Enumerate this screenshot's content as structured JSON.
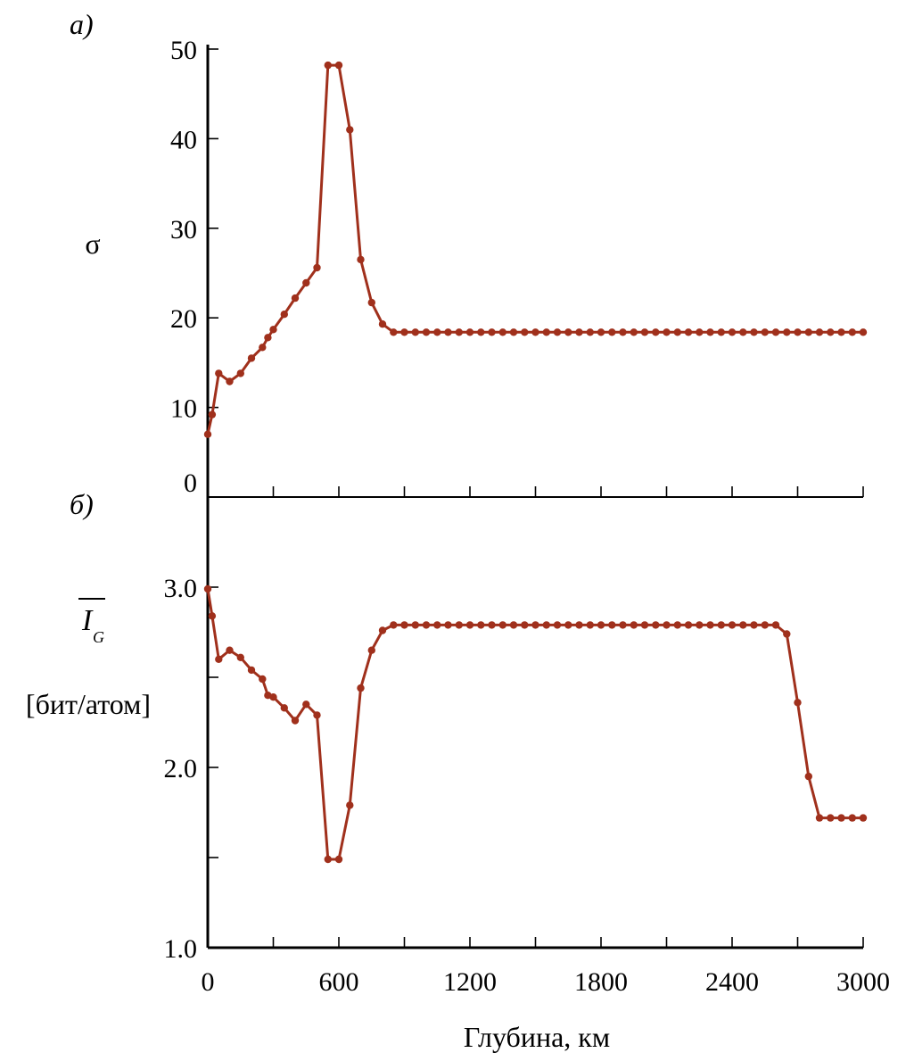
{
  "chart_data": [
    {
      "type": "line",
      "panel_label": "а)",
      "ylabel": "σ",
      "ylim": [
        0,
        50
      ],
      "yticks": [
        0,
        10,
        20,
        30,
        40,
        50
      ],
      "ytick_labels": [
        "0",
        "10",
        "20",
        "30",
        "40",
        "50"
      ],
      "xlim": [
        0,
        3000
      ],
      "color": "#a0301c",
      "series": [
        {
          "x": [
            0,
            20,
            50,
            100,
            150,
            200,
            250,
            275,
            300,
            350,
            400,
            450,
            500,
            550,
            600,
            650,
            700,
            750,
            800,
            850,
            900,
            950,
            1000,
            1050,
            1100,
            1150,
            1200,
            1250,
            1300,
            1350,
            1400,
            1450,
            1500,
            1550,
            1600,
            1650,
            1700,
            1750,
            1800,
            1850,
            1900,
            1950,
            2000,
            2050,
            2100,
            2150,
            2200,
            2250,
            2300,
            2350,
            2400,
            2450,
            2500,
            2550,
            2600,
            2650,
            2700,
            2750,
            2800,
            2850,
            2900,
            2950,
            3000
          ],
          "y": [
            7,
            9.2,
            13.8,
            12.9,
            13.8,
            15.5,
            16.7,
            17.8,
            18.7,
            20.4,
            22.2,
            23.9,
            25.6,
            48.2,
            48.2,
            41.0,
            26.5,
            21.7,
            19.3,
            18.4,
            18.4,
            18.4,
            18.4,
            18.4,
            18.4,
            18.4,
            18.4,
            18.4,
            18.4,
            18.4,
            18.4,
            18.4,
            18.4,
            18.4,
            18.4,
            18.4,
            18.4,
            18.4,
            18.4,
            18.4,
            18.4,
            18.4,
            18.4,
            18.4,
            18.4,
            18.4,
            18.4,
            18.4,
            18.4,
            18.4,
            18.4,
            18.4,
            18.4,
            18.4,
            18.4,
            18.4,
            18.4,
            18.4,
            18.4,
            18.4,
            18.4,
            18.4,
            18.4
          ]
        }
      ]
    },
    {
      "type": "line",
      "panel_label": "б)",
      "ylabel_main": "I",
      "ylabel_sub": "G",
      "ylabel_unit": "[бит/атом]",
      "ylim": [
        1.0,
        3.5
      ],
      "yticks": [
        1.0,
        1.5,
        2.0,
        2.5,
        3.0
      ],
      "ytick_labels": [
        "1.0",
        "",
        "2.0",
        "",
        "3.0"
      ],
      "xlim": [
        0,
        3000
      ],
      "xticks": [
        0,
        300,
        600,
        900,
        1200,
        1500,
        1800,
        2100,
        2400,
        2700,
        3000
      ],
      "xtick_labels": [
        "0",
        "",
        "600",
        "",
        "1200",
        "",
        "1800",
        "",
        "2400",
        "",
        "3000"
      ],
      "xlabel": "Глубина, км",
      "color": "#a0301c",
      "series": [
        {
          "x": [
            0,
            20,
            50,
            100,
            150,
            200,
            250,
            275,
            300,
            350,
            400,
            450,
            500,
            550,
            600,
            650,
            700,
            750,
            800,
            850,
            900,
            950,
            1000,
            1050,
            1100,
            1150,
            1200,
            1250,
            1300,
            1350,
            1400,
            1450,
            1500,
            1550,
            1600,
            1650,
            1700,
            1750,
            1800,
            1850,
            1900,
            1950,
            2000,
            2050,
            2100,
            2150,
            2200,
            2250,
            2300,
            2350,
            2400,
            2450,
            2500,
            2550,
            2600,
            2650,
            2700,
            2750,
            2800,
            2850,
            2900,
            2950,
            3000
          ],
          "y": [
            2.99,
            2.84,
            2.6,
            2.65,
            2.61,
            2.54,
            2.49,
            2.4,
            2.39,
            2.33,
            2.26,
            2.35,
            2.29,
            1.49,
            1.49,
            1.79,
            2.44,
            2.65,
            2.76,
            2.79,
            2.79,
            2.79,
            2.79,
            2.79,
            2.79,
            2.79,
            2.79,
            2.79,
            2.79,
            2.79,
            2.79,
            2.79,
            2.79,
            2.79,
            2.79,
            2.79,
            2.79,
            2.79,
            2.79,
            2.79,
            2.79,
            2.79,
            2.79,
            2.79,
            2.79,
            2.79,
            2.79,
            2.79,
            2.79,
            2.79,
            2.79,
            2.79,
            2.79,
            2.79,
            2.79,
            2.74,
            2.36,
            1.95,
            1.72,
            1.72,
            1.72,
            1.72,
            1.72
          ]
        }
      ]
    }
  ]
}
